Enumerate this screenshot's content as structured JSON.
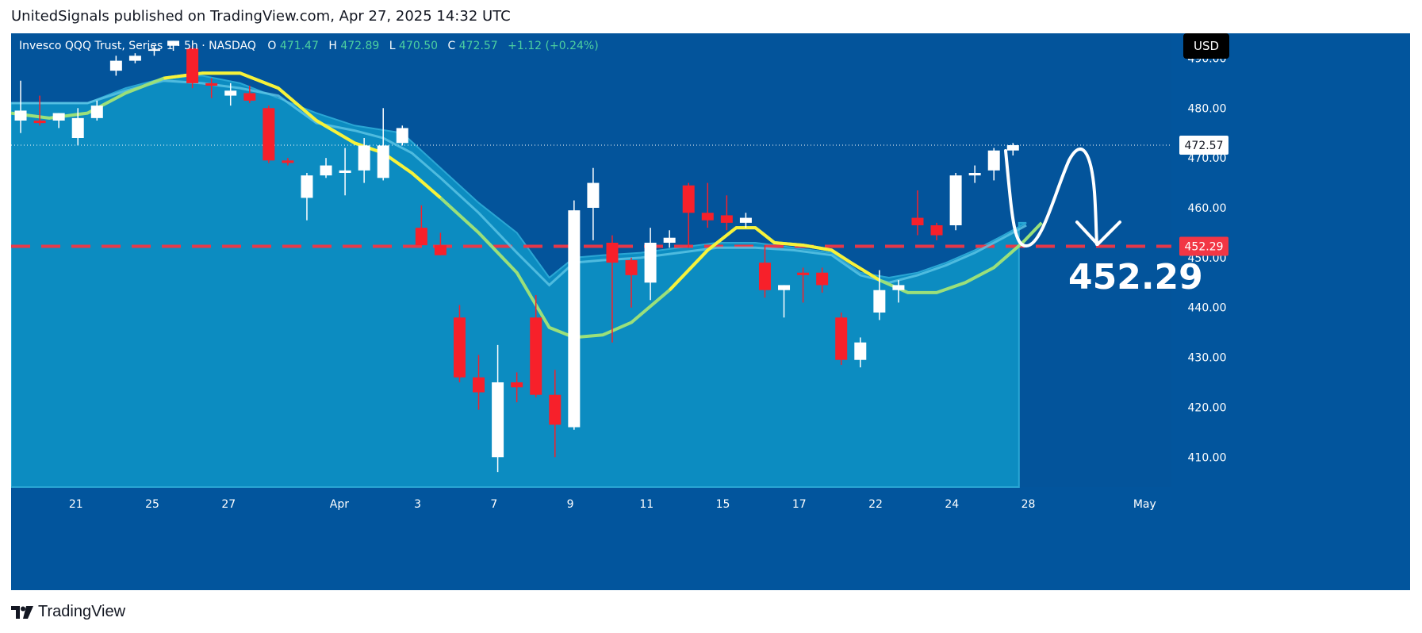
{
  "publisher_line": "UnitedSignals published on TradingView.com, Apr 27, 2025 14:32 UTC",
  "footer": {
    "brand": "TradingView",
    "logo_icon": "tradingview-logo-icon"
  },
  "colors": {
    "background": "#02559d",
    "plot_area": "#03549b",
    "cloud_fill": "#0c8cc1",
    "cloud_edge": "#2aa6d4",
    "bull_candle": "#ffffff",
    "bear_candle": "#f7202a",
    "ma_yellow": "#f7f23a",
    "ma_green": "#9be07a",
    "target_line": "#f23645",
    "text": "#ffffff",
    "ohlc_value": "#4dd0a0"
  },
  "legend": {
    "symbol": "Invesco QQQ Trust, Series 1 · 5h · NASDAQ",
    "o_label": "O",
    "o_value": "471.47",
    "h_label": "H",
    "h_value": "472.89",
    "l_label": "L",
    "l_value": "470.50",
    "c_label": "C",
    "c_value": "472.57",
    "change": "+1.12 (+0.24%)"
  },
  "currency_button": "USD",
  "annotations": {
    "target_label": "452.29",
    "projection_arrow_icon": "curved-down-arrow-icon"
  },
  "chart_data": {
    "type": "candlestick",
    "x_range": [
      0,
      60.8
    ],
    "y_range": [
      404,
      495
    ],
    "y_ticks": [
      {
        "value": 410,
        "label": "410.00"
      },
      {
        "value": 420,
        "label": "420.00"
      },
      {
        "value": 430,
        "label": "430.00"
      },
      {
        "value": 440,
        "label": "440.00"
      },
      {
        "value": 450,
        "label": "450.00"
      },
      {
        "value": 460,
        "label": "460.00"
      },
      {
        "value": 470,
        "label": "470.00"
      },
      {
        "value": 480,
        "label": "480.00"
      },
      {
        "value": 490,
        "label": "490.00"
      }
    ],
    "x_ticks": [
      {
        "x": 3.4,
        "label": "21"
      },
      {
        "x": 7.4,
        "label": "25"
      },
      {
        "x": 11.4,
        "label": "27"
      },
      {
        "x": 17.2,
        "label": "Apr"
      },
      {
        "x": 21.3,
        "label": "3"
      },
      {
        "x": 25.3,
        "label": "7"
      },
      {
        "x": 29.3,
        "label": "9"
      },
      {
        "x": 33.3,
        "label": "11"
      },
      {
        "x": 37.3,
        "label": "15"
      },
      {
        "x": 41.3,
        "label": "17"
      },
      {
        "x": 45.3,
        "label": "22"
      },
      {
        "x": 49.3,
        "label": "24"
      },
      {
        "x": 53.3,
        "label": "28"
      },
      {
        "x": 59.4,
        "label": "May"
      }
    ],
    "last_price": {
      "value": 472.57,
      "label": "472.57"
    },
    "target_level": {
      "value": 452.29,
      "label": "452.29"
    },
    "candles": [
      {
        "i": 0,
        "o": 477.5,
        "h": 485.5,
        "l": 475,
        "c": 479.5
      },
      {
        "i": 1,
        "o": 477.5,
        "h": 482.5,
        "l": 476.5,
        "c": 477
      },
      {
        "i": 2,
        "o": 477.5,
        "h": 479,
        "l": 476,
        "c": 479
      },
      {
        "i": 3,
        "o": 474,
        "h": 480,
        "l": 472.5,
        "c": 478
      },
      {
        "i": 4,
        "o": 478,
        "h": 481.5,
        "l": 477.5,
        "c": 480.5
      },
      {
        "i": 5,
        "o": 487.5,
        "h": 490.5,
        "l": 486.5,
        "c": 489.5
      },
      {
        "i": 6,
        "o": 489.5,
        "h": 491,
        "l": 489,
        "c": 490.5
      },
      {
        "i": 7,
        "o": 491.5,
        "h": 492.5,
        "l": 490.5,
        "c": 491.8
      },
      {
        "i": 8,
        "o": 492.5,
        "h": 493.5,
        "l": 491.5,
        "c": 493.5
      },
      {
        "i": 9,
        "o": 492,
        "h": 492.5,
        "l": 484,
        "c": 485
      },
      {
        "i": 10,
        "o": 485,
        "h": 486,
        "l": 482,
        "c": 484.5
      },
      {
        "i": 11,
        "o": 482.5,
        "h": 485,
        "l": 480.5,
        "c": 483.5
      },
      {
        "i": 12,
        "o": 483,
        "h": 484.5,
        "l": 481,
        "c": 481.5
      },
      {
        "i": 13,
        "o": 480,
        "h": 480.5,
        "l": 469,
        "c": 469.5
      },
      {
        "i": 14,
        "o": 469.5,
        "h": 470,
        "l": 468.5,
        "c": 469
      },
      {
        "i": 15,
        "o": 462,
        "h": 467,
        "l": 457.5,
        "c": 466.5
      },
      {
        "i": 16,
        "o": 466.5,
        "h": 470,
        "l": 466,
        "c": 468.5
      },
      {
        "i": 17,
        "o": 467,
        "h": 472,
        "l": 462.5,
        "c": 467.5
      },
      {
        "i": 18,
        "o": 467.5,
        "h": 474,
        "l": 465,
        "c": 472.5
      },
      {
        "i": 19,
        "o": 466,
        "h": 480,
        "l": 465.5,
        "c": 472.5
      },
      {
        "i": 20,
        "o": 473,
        "h": 476.5,
        "l": 472.5,
        "c": 476
      },
      {
        "i": 21,
        "o": 456,
        "h": 460.5,
        "l": 452.5,
        "c": 452.5
      },
      {
        "i": 22,
        "o": 452.5,
        "h": 455,
        "l": 450.5,
        "c": 450.5
      },
      {
        "i": 23,
        "o": 438,
        "h": 440.5,
        "l": 425,
        "c": 426
      },
      {
        "i": 24,
        "o": 426,
        "h": 430.5,
        "l": 419.5,
        "c": 423
      },
      {
        "i": 25,
        "o": 410,
        "h": 432.5,
        "l": 407,
        "c": 425
      },
      {
        "i": 26,
        "o": 425,
        "h": 427,
        "l": 421,
        "c": 424
      },
      {
        "i": 27,
        "o": 438,
        "h": 442.5,
        "l": 422,
        "c": 422.5
      },
      {
        "i": 28,
        "o": 422.5,
        "h": 427.5,
        "l": 410,
        "c": 416.5
      },
      {
        "i": 29,
        "o": 416,
        "h": 461.5,
        "l": 415.5,
        "c": 459.5
      },
      {
        "i": 30,
        "o": 460,
        "h": 468,
        "l": 453.5,
        "c": 465
      },
      {
        "i": 31,
        "o": 453,
        "h": 454.5,
        "l": 433,
        "c": 449
      },
      {
        "i": 32,
        "o": 449.5,
        "h": 450,
        "l": 440,
        "c": 446.5
      },
      {
        "i": 33,
        "o": 445,
        "h": 456,
        "l": 441.5,
        "c": 453
      },
      {
        "i": 34,
        "o": 453,
        "h": 455.5,
        "l": 452,
        "c": 454
      },
      {
        "i": 35,
        "o": 464.5,
        "h": 465,
        "l": 452,
        "c": 459
      },
      {
        "i": 36,
        "o": 459,
        "h": 465,
        "l": 456,
        "c": 457.5
      },
      {
        "i": 37,
        "o": 458.5,
        "h": 462.5,
        "l": 455.5,
        "c": 457
      },
      {
        "i": 38,
        "o": 457,
        "h": 459,
        "l": 456,
        "c": 458
      },
      {
        "i": 39,
        "o": 449,
        "h": 452.5,
        "l": 442,
        "c": 443.5
      },
      {
        "i": 40,
        "o": 443.5,
        "h": 444.5,
        "l": 438,
        "c": 444.5
      },
      {
        "i": 41,
        "o": 447,
        "h": 448,
        "l": 441,
        "c": 446.5
      },
      {
        "i": 42,
        "o": 447,
        "h": 448,
        "l": 443,
        "c": 444.5
      },
      {
        "i": 43,
        "o": 438,
        "h": 439,
        "l": 428.5,
        "c": 429.5
      },
      {
        "i": 44,
        "o": 429.5,
        "h": 434,
        "l": 428,
        "c": 433
      },
      {
        "i": 45,
        "o": 439,
        "h": 447.5,
        "l": 437.5,
        "c": 443.5
      },
      {
        "i": 46,
        "o": 443.5,
        "h": 445.5,
        "l": 441,
        "c": 444.5
      },
      {
        "i": 47,
        "o": 458,
        "h": 463.5,
        "l": 454.5,
        "c": 456.5
      },
      {
        "i": 48,
        "o": 456.5,
        "h": 457,
        "l": 453.5,
        "c": 454.5
      },
      {
        "i": 49,
        "o": 456.5,
        "h": 467,
        "l": 455.5,
        "c": 466.5
      },
      {
        "i": 50,
        "o": 466.5,
        "h": 468.5,
        "l": 465,
        "c": 467
      },
      {
        "i": 51,
        "o": 467.5,
        "h": 472,
        "l": 465.5,
        "c": 471.5
      },
      {
        "i": 52,
        "o": 471.5,
        "h": 473,
        "l": 470.5,
        "c": 472.57
      }
    ],
    "ma_fast": [
      [
        0,
        479
      ],
      [
        2,
        478
      ],
      [
        4,
        479
      ],
      [
        6,
        483
      ],
      [
        8,
        486
      ],
      [
        10,
        487
      ],
      [
        12,
        487
      ],
      [
        14,
        484
      ],
      [
        16,
        477.5
      ],
      [
        18,
        473
      ],
      [
        19.5,
        471
      ],
      [
        21,
        467
      ],
      [
        22.5,
        462
      ],
      [
        24.5,
        455
      ],
      [
        26.5,
        447
      ],
      [
        28.2,
        436
      ],
      [
        29.5,
        434
      ],
      [
        31,
        434.5
      ],
      [
        32.5,
        437
      ],
      [
        34.5,
        443.5
      ],
      [
        36.5,
        451.5
      ],
      [
        38,
        456
      ],
      [
        39,
        456
      ],
      [
        40,
        453
      ],
      [
        41.5,
        452.5
      ],
      [
        43,
        451.5
      ],
      [
        44,
        449
      ],
      [
        45.5,
        445.5
      ],
      [
        47,
        443
      ],
      [
        48.5,
        443
      ],
      [
        50,
        445
      ],
      [
        51.5,
        448
      ],
      [
        53,
        453
      ],
      [
        54,
        457
      ]
    ],
    "ma_slow": [
      [
        0,
        481
      ],
      [
        2,
        481
      ],
      [
        4,
        481
      ],
      [
        6,
        483.5
      ],
      [
        8,
        485.5
      ],
      [
        10,
        485
      ],
      [
        12,
        484
      ],
      [
        14,
        482.5
      ],
      [
        16,
        477
      ],
      [
        18,
        475.5
      ],
      [
        19.5,
        474
      ],
      [
        21,
        471
      ],
      [
        22.5,
        466
      ],
      [
        24.5,
        459
      ],
      [
        26.5,
        451
      ],
      [
        28.2,
        444.5
      ],
      [
        29.5,
        449
      ],
      [
        31,
        449.5
      ],
      [
        33,
        450
      ],
      [
        35,
        451
      ],
      [
        37,
        452
      ],
      [
        39,
        452
      ],
      [
        41,
        451.5
      ],
      [
        43,
        450.5
      ],
      [
        44.5,
        446.5
      ],
      [
        46,
        445
      ],
      [
        47.5,
        446.5
      ],
      [
        49,
        448.5
      ],
      [
        50.5,
        451
      ],
      [
        52,
        454
      ],
      [
        53.2,
        456.5
      ]
    ],
    "cloud_upper": [
      [
        0,
        481
      ],
      [
        2,
        481
      ],
      [
        4,
        481
      ],
      [
        6,
        484
      ],
      [
        8,
        486
      ],
      [
        10,
        486.5
      ],
      [
        12,
        485
      ],
      [
        14,
        482
      ],
      [
        16,
        479
      ],
      [
        18,
        476.5
      ],
      [
        20.5,
        475
      ],
      [
        22.5,
        468
      ],
      [
        24.5,
        461
      ],
      [
        26.5,
        455
      ],
      [
        28.2,
        446
      ],
      [
        29.5,
        450
      ],
      [
        31,
        450.5
      ],
      [
        33,
        451
      ],
      [
        35,
        452
      ],
      [
        37,
        453
      ],
      [
        39,
        453
      ],
      [
        41,
        452
      ],
      [
        43,
        451
      ],
      [
        44.5,
        447
      ],
      [
        46,
        446
      ],
      [
        47.5,
        447
      ],
      [
        49,
        449
      ],
      [
        50.5,
        451.5
      ],
      [
        52,
        454.5
      ],
      [
        53.2,
        457
      ]
    ]
  }
}
